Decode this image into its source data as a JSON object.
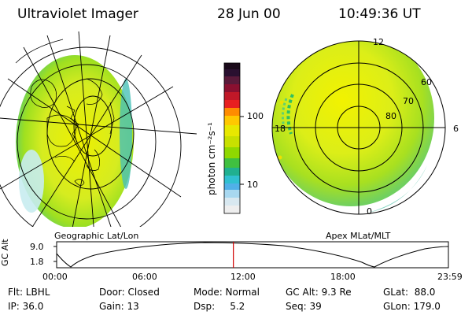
{
  "header": {
    "title": "Ultraviolet Imager",
    "date": "28 Jun 00",
    "time": "10:49:36 UT"
  },
  "colorbar": {
    "unit_label": "photon cm⁻²s⁻¹",
    "ticks": [
      "100",
      "10"
    ],
    "colors": [
      "#1a0a1a",
      "#5a1a3a",
      "#a01030",
      "#e02020",
      "#ff7a00",
      "#f0c800",
      "#c8e000",
      "#7fd000",
      "#30c040",
      "#20b0a0",
      "#40a0e0",
      "#9fd0f0",
      "#e8eef0"
    ]
  },
  "left_map": {
    "caption": "Geographic Lat/Lon"
  },
  "right_map": {
    "caption": "Apex MLat/MLT",
    "mlt_labels": [
      "12",
      "18",
      "6",
      "0"
    ],
    "lat_labels": [
      "60",
      "70",
      "80"
    ]
  },
  "timeline": {
    "y_axis_label": "GC Alt",
    "y_ticks": [
      "9.0",
      "1.8"
    ],
    "x_ticks": [
      "00:00",
      "06:00",
      "12:00",
      "18:00",
      "23:59"
    ],
    "current_fraction": 0.4511,
    "marker_color": "#d00000"
  },
  "info": {
    "row1": [
      "Flt: LBHL",
      "Door: Closed",
      "Mode: Normal",
      "GC Alt: 9.3 Re",
      "GLat:  88.0"
    ],
    "row2": [
      "IP: 36.0",
      "Gain: 13",
      "Dsp:     5.2",
      "Seq: 39",
      "GLon: 179.0"
    ]
  }
}
